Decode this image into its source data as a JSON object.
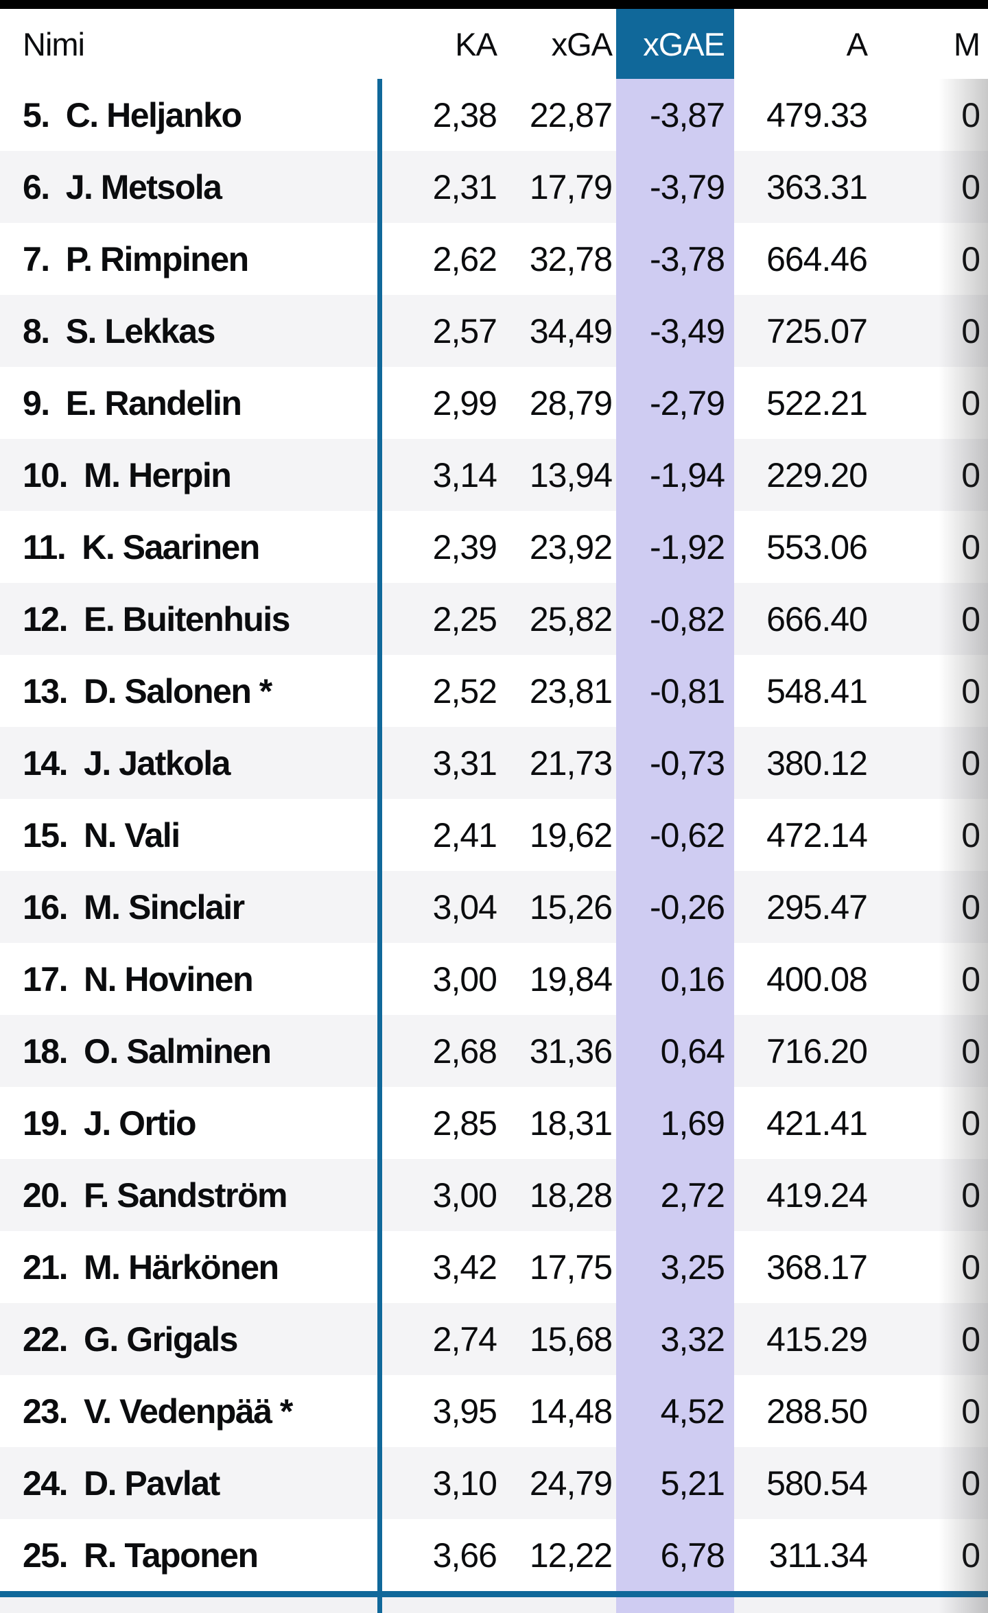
{
  "table": {
    "header": {
      "name": "Nimi",
      "ka": "KA",
      "xga": "xGA",
      "xgae": "xGAE",
      "a": "A",
      "m": "M"
    },
    "highlighted_column": "xGAE",
    "rows": [
      {
        "rank": "5.",
        "name": "C. Heljanko",
        "ka": "2,38",
        "xga": "22,87",
        "xgae": "-3,87",
        "a": "479.33",
        "m": "0"
      },
      {
        "rank": "6.",
        "name": "J. Metsola",
        "ka": "2,31",
        "xga": "17,79",
        "xgae": "-3,79",
        "a": "363.31",
        "m": "0"
      },
      {
        "rank": "7.",
        "name": "P. Rimpinen",
        "ka": "2,62",
        "xga": "32,78",
        "xgae": "-3,78",
        "a": "664.46",
        "m": "0"
      },
      {
        "rank": "8.",
        "name": "S. Lekkas",
        "ka": "2,57",
        "xga": "34,49",
        "xgae": "-3,49",
        "a": "725.07",
        "m": "0"
      },
      {
        "rank": "9.",
        "name": "E. Randelin",
        "ka": "2,99",
        "xga": "28,79",
        "xgae": "-2,79",
        "a": "522.21",
        "m": "0"
      },
      {
        "rank": "10.",
        "name": "M. Herpin",
        "ka": "3,14",
        "xga": "13,94",
        "xgae": "-1,94",
        "a": "229.20",
        "m": "0"
      },
      {
        "rank": "11.",
        "name": "K. Saarinen",
        "ka": "2,39",
        "xga": "23,92",
        "xgae": "-1,92",
        "a": "553.06",
        "m": "0"
      },
      {
        "rank": "12.",
        "name": "E. Buitenhuis",
        "ka": "2,25",
        "xga": "25,82",
        "xgae": "-0,82",
        "a": "666.40",
        "m": "0"
      },
      {
        "rank": "13.",
        "name": "D. Salonen *",
        "ka": "2,52",
        "xga": "23,81",
        "xgae": "-0,81",
        "a": "548.41",
        "m": "0"
      },
      {
        "rank": "14.",
        "name": "J. Jatkola",
        "ka": "3,31",
        "xga": "21,73",
        "xgae": "-0,73",
        "a": "380.12",
        "m": "0"
      },
      {
        "rank": "15.",
        "name": "N. Vali",
        "ka": "2,41",
        "xga": "19,62",
        "xgae": "-0,62",
        "a": "472.14",
        "m": "0"
      },
      {
        "rank": "16.",
        "name": "M. Sinclair",
        "ka": "3,04",
        "xga": "15,26",
        "xgae": "-0,26",
        "a": "295.47",
        "m": "0"
      },
      {
        "rank": "17.",
        "name": "N. Hovinen",
        "ka": "3,00",
        "xga": "19,84",
        "xgae": "0,16",
        "a": "400.08",
        "m": "0"
      },
      {
        "rank": "18.",
        "name": "O. Salminen",
        "ka": "2,68",
        "xga": "31,36",
        "xgae": "0,64",
        "a": "716.20",
        "m": "0"
      },
      {
        "rank": "19.",
        "name": "J. Ortio",
        "ka": "2,85",
        "xga": "18,31",
        "xgae": "1,69",
        "a": "421.41",
        "m": "0"
      },
      {
        "rank": "20.",
        "name": "F. Sandström",
        "ka": "3,00",
        "xga": "18,28",
        "xgae": "2,72",
        "a": "419.24",
        "m": "0"
      },
      {
        "rank": "21.",
        "name": "M. Härkönen",
        "ka": "3,42",
        "xga": "17,75",
        "xgae": "3,25",
        "a": "368.17",
        "m": "0"
      },
      {
        "rank": "22.",
        "name": "G. Grigals",
        "ka": "2,74",
        "xga": "15,68",
        "xgae": "3,32",
        "a": "415.29",
        "m": "0"
      },
      {
        "rank": "23.",
        "name": "V. Vedenpää *",
        "ka": "3,95",
        "xga": "14,48",
        "xgae": "4,52",
        "a": "288.50",
        "m": "0"
      },
      {
        "rank": "24.",
        "name": "D. Pavlat",
        "ka": "3,10",
        "xga": "24,79",
        "xgae": "5,21",
        "a": "580.54",
        "m": "0"
      },
      {
        "rank": "25.",
        "name": "R. Taponen",
        "ka": "3,66",
        "xga": "12,22",
        "xgae": "6,78",
        "a": "311.34",
        "m": "0"
      }
    ]
  },
  "colors": {
    "accent_blue": "#10689A",
    "highlight_column_bg": "#CFCCF2",
    "row_alt_bg": "#F4F4F6",
    "top_bar_bg": "#000000",
    "text": "#0B0C0E"
  }
}
